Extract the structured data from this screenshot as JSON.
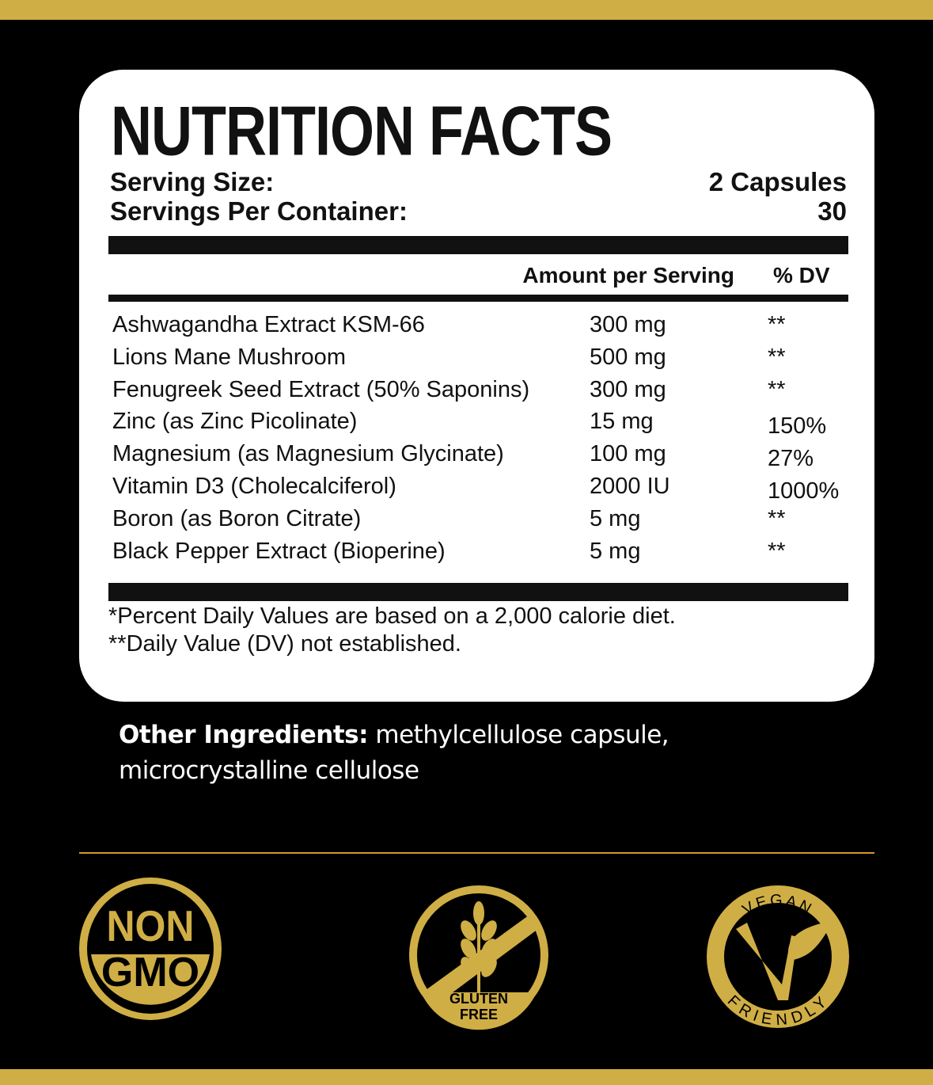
{
  "colors": {
    "gold": "#cfae45",
    "background": "#000000",
    "card": "#ffffff",
    "divider": "#d49a2a"
  },
  "label": {
    "title": "NUTRITION FACTS",
    "serving_size_label": "Serving Size:",
    "serving_size_value": "2 Capsules",
    "servings_per_container_label": "Servings Per Container:",
    "servings_per_container_value": "30",
    "header_amount": "Amount per Serving",
    "header_dv": "% DV",
    "rows": [
      {
        "name": "Ashwagandha Extract KSM-66",
        "amount": "300 mg",
        "dv": "**"
      },
      {
        "name": "Lions Mane Mushroom",
        "amount": "500 mg",
        "dv": "**"
      },
      {
        "name": "Fenugreek Seed Extract (50% Saponins)",
        "amount": "300 mg",
        "dv": "**"
      },
      {
        "name": "Zinc (as Zinc Picolinate)",
        "amount": "15 mg",
        "dv": "150%"
      },
      {
        "name": "Magnesium (as Magnesium Glycinate)",
        "amount": "100 mg",
        "dv": "27%"
      },
      {
        "name": "Vitamin D3 (Cholecalciferol)",
        "amount": "2000 IU",
        "dv": "1000%"
      },
      {
        "name": "Boron (as Boron Citrate)",
        "amount": "5 mg",
        "dv": "**"
      },
      {
        "name": "Black Pepper Extract (Bioperine)",
        "amount": "5 mg",
        "dv": "**"
      }
    ],
    "footnote1": "*Percent Daily Values are based on a 2,000 calorie diet.",
    "footnote2": "**Daily Value (DV) not established."
  },
  "other_ingredients": {
    "label": "Other Ingredients:",
    "line1": " methylcellulose capsule,",
    "line2": "microcrystalline cellulose"
  },
  "badges": [
    {
      "icon": "non-gmo-badge-icon",
      "text1": "NON",
      "text2": "GMO"
    },
    {
      "icon": "gluten-free-badge-icon",
      "text1": "GLUTEN",
      "text2": "FREE"
    },
    {
      "icon": "vegan-friendly-badge-icon",
      "text1": "VEGAN",
      "text2": "FRIENDLY"
    }
  ]
}
